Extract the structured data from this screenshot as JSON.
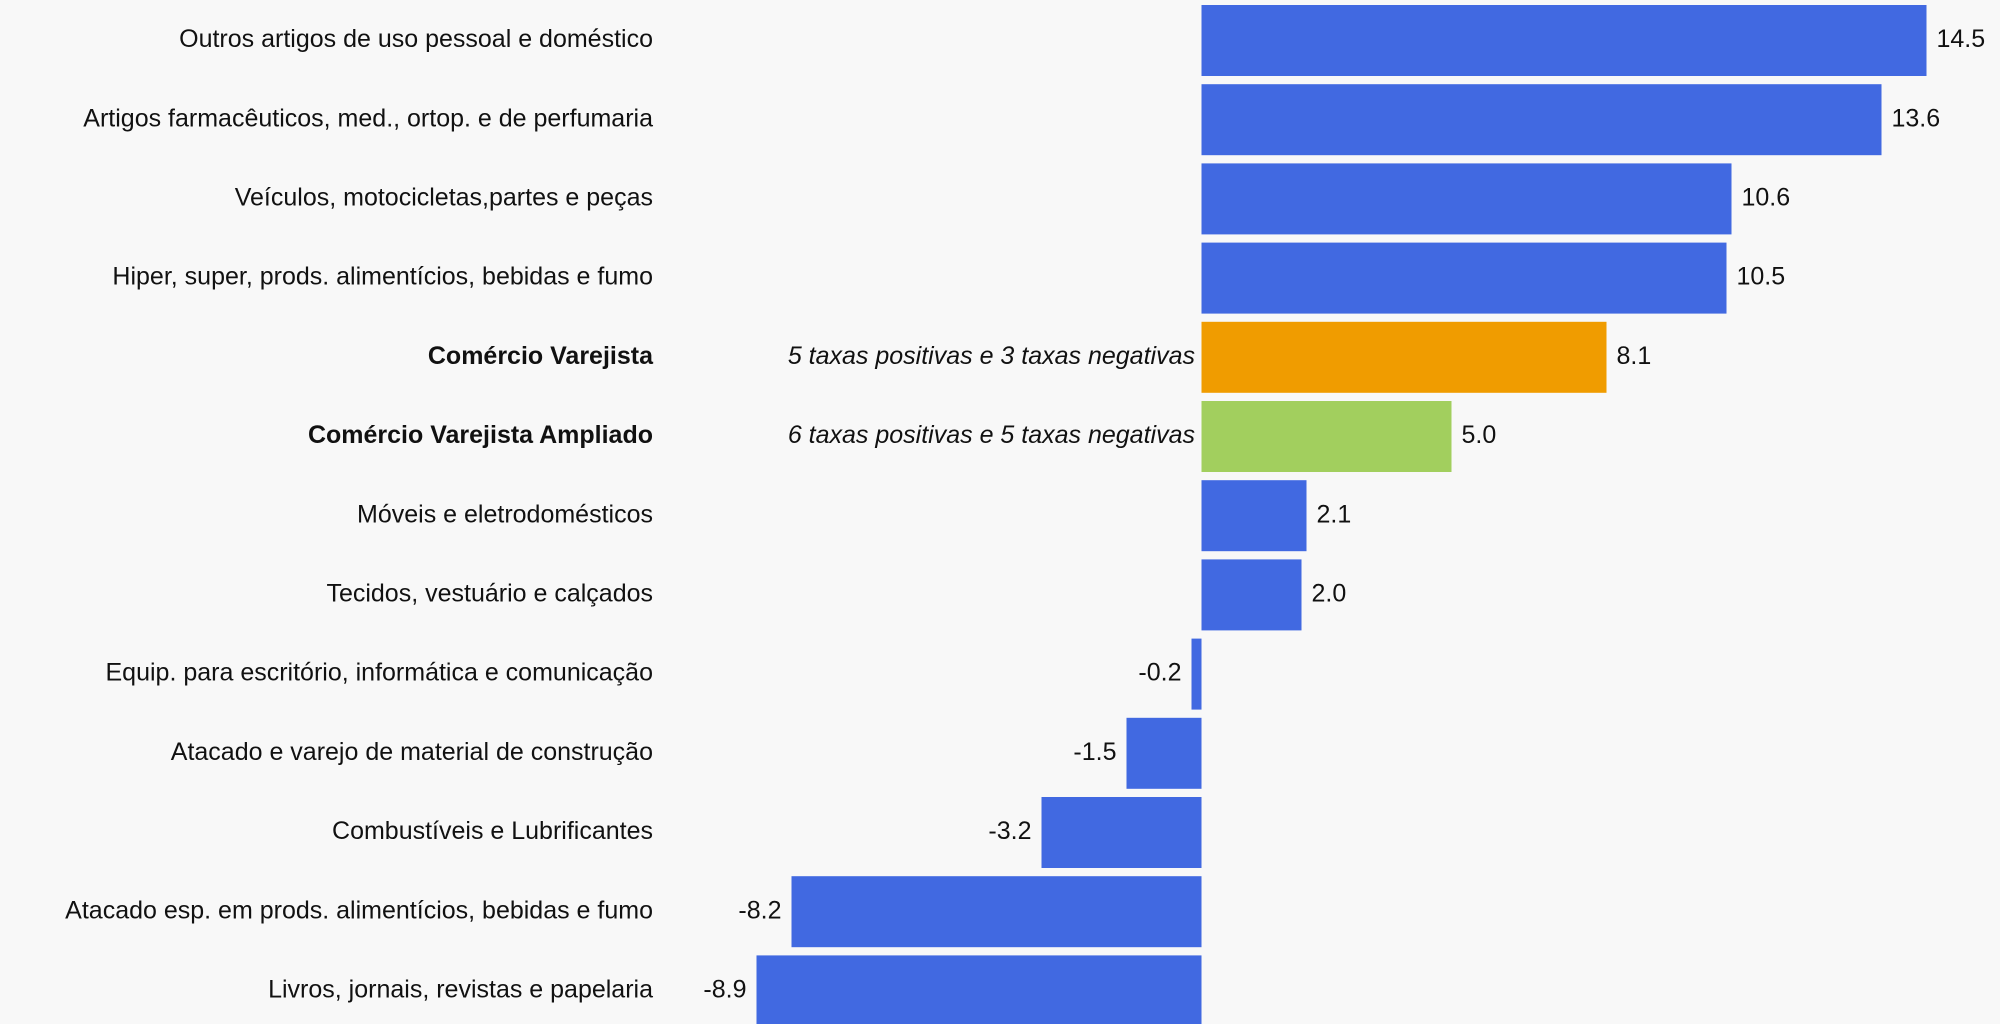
{
  "chart_data": {
    "type": "bar",
    "orientation": "horizontal",
    "categories": [
      "Outros artigos de uso pessoal e doméstico",
      "Artigos farmacêuticos, med., ortop. e de perfumaria",
      "Veículos, motocicletas,partes e peças",
      "Hiper, super, prods.  alimentícios, bebidas e fumo",
      "Comércio Varejista",
      "Comércio Varejista Ampliado",
      "Móveis e eletrodomésticos",
      "Tecidos, vestuário e calçados",
      "Equip. para escritório, informática e comunicação",
      "Atacado e varejo de material de construção",
      "Combustíveis e Lubrificantes",
      "Atacado esp. em prods. alimentícios, bebidas e fumo",
      "Livros, jornais, revistas e papelaria"
    ],
    "values": [
      14.5,
      13.6,
      10.6,
      10.5,
      8.1,
      5.0,
      2.1,
      2.0,
      -0.2,
      -1.5,
      -3.2,
      -8.2,
      -8.9
    ],
    "value_labels": [
      "14.5",
      "13.6",
      "10.6",
      "10.5",
      "8.1",
      "5.0",
      "2.1",
      "2.0",
      "-0.2",
      "-1.5",
      "-3.2",
      "-8.2",
      "-8.9"
    ],
    "colors": [
      "#4169e1",
      "#4169e1",
      "#4169e1",
      "#4169e1",
      "#f09c00",
      "#a2cf5e",
      "#4169e1",
      "#4169e1",
      "#4169e1",
      "#4169e1",
      "#4169e1",
      "#4169e1",
      "#4169e1"
    ],
    "bold": [
      false,
      false,
      false,
      false,
      true,
      true,
      false,
      false,
      false,
      false,
      false,
      false,
      false
    ],
    "annotations": [
      null,
      null,
      null,
      null,
      "5 taxas positivas e 3 taxas negativas",
      "6 taxas positivas e 5 taxas negativas",
      null,
      null,
      null,
      null,
      null,
      null,
      null
    ]
  }
}
